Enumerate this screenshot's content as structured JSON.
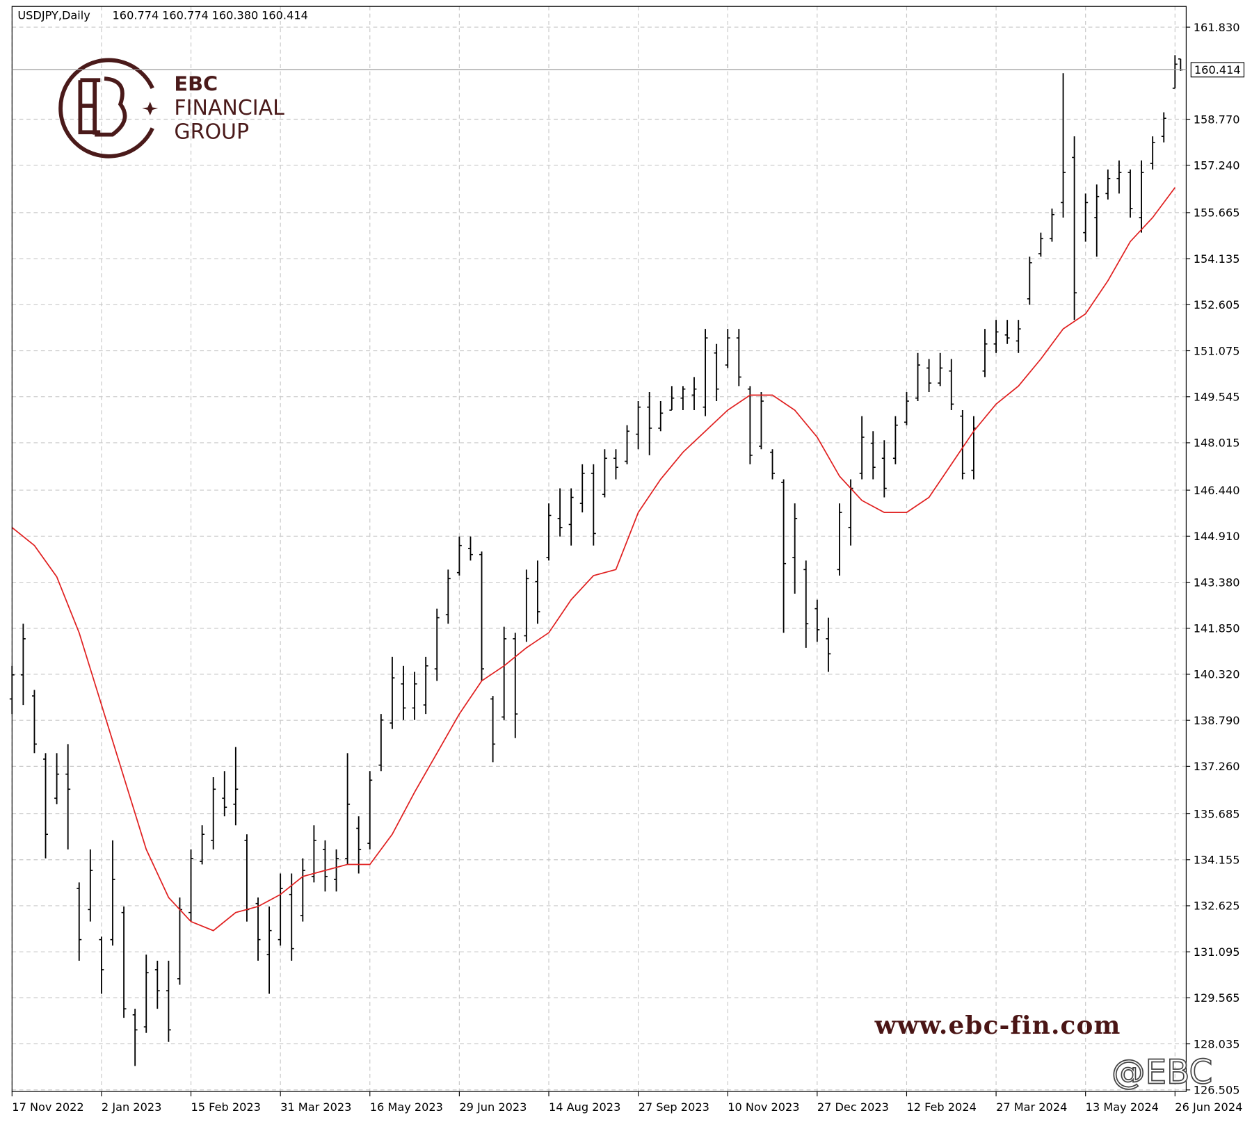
{
  "chart_data": {
    "type": "ohlc",
    "title": "USDJPY,Daily",
    "x": [
      0,
      4,
      8,
      12,
      16,
      20,
      24,
      28,
      32,
      36,
      40,
      44,
      48,
      52,
      56,
      60,
      64,
      68,
      72,
      76,
      80,
      84,
      88,
      92,
      96,
      100,
      104,
      108,
      112,
      116,
      120,
      124,
      128,
      132,
      136,
      140,
      144,
      148,
      152,
      156,
      160,
      164,
      168,
      172,
      176,
      180,
      184,
      188,
      192,
      196,
      200,
      204,
      208,
      212,
      216,
      220,
      224,
      228,
      232,
      236,
      240,
      244,
      248,
      252,
      256,
      260,
      264,
      268,
      272,
      276,
      280,
      284,
      288,
      292,
      296,
      300,
      304,
      308,
      312,
      316,
      320,
      324,
      328,
      332,
      336,
      340,
      344,
      348,
      352,
      356,
      360,
      364,
      368,
      372,
      376,
      380,
      384,
      388,
      392,
      396,
      400,
      404,
      408,
      412,
      416,
      418
    ],
    "ohlc": [
      [
        139.5,
        140.6,
        139.0,
        140.3
      ],
      [
        140.3,
        142.0,
        139.3,
        141.5
      ],
      [
        139.6,
        139.8,
        137.7,
        138.0
      ],
      [
        137.5,
        137.7,
        134.2,
        135.0
      ],
      [
        136.2,
        137.7,
        136.0,
        137.0
      ],
      [
        137.0,
        138.0,
        134.5,
        136.5
      ],
      [
        133.2,
        133.4,
        130.8,
        131.5
      ],
      [
        132.5,
        134.5,
        132.1,
        133.8
      ],
      [
        131.5,
        131.6,
        129.7,
        130.5
      ],
      [
        131.5,
        134.8,
        131.3,
        133.5
      ],
      [
        132.4,
        132.6,
        128.9,
        129.2
      ],
      [
        129.0,
        129.2,
        127.3,
        128.5
      ],
      [
        128.6,
        131.0,
        128.4,
        130.4
      ],
      [
        130.5,
        130.8,
        129.2,
        129.8
      ],
      [
        129.8,
        130.8,
        128.1,
        128.5
      ],
      [
        130.2,
        132.9,
        130.0,
        132.5
      ],
      [
        132.4,
        134.5,
        132.1,
        134.2
      ],
      [
        134.1,
        135.3,
        134.0,
        135.0
      ],
      [
        134.8,
        136.9,
        134.5,
        136.5
      ],
      [
        136.2,
        137.1,
        135.6,
        135.9
      ],
      [
        136.0,
        137.9,
        135.3,
        136.5
      ],
      [
        134.8,
        135.0,
        132.1,
        132.5
      ],
      [
        132.7,
        132.9,
        130.8,
        131.5
      ],
      [
        131.0,
        132.6,
        129.7,
        131.8
      ],
      [
        131.5,
        133.7,
        131.3,
        133.2
      ],
      [
        133.0,
        133.7,
        130.8,
        131.2
      ],
      [
        132.3,
        134.2,
        132.1,
        133.8
      ],
      [
        133.6,
        135.3,
        133.4,
        134.8
      ],
      [
        134.5,
        134.8,
        133.1,
        133.6
      ],
      [
        133.5,
        134.5,
        133.1,
        134.2
      ],
      [
        134.2,
        137.7,
        134.0,
        136.0
      ],
      [
        135.2,
        135.6,
        133.7,
        134.5
      ],
      [
        134.7,
        137.1,
        134.5,
        136.8
      ],
      [
        137.3,
        139.0,
        137.1,
        138.8
      ],
      [
        138.7,
        140.9,
        138.5,
        140.2
      ],
      [
        140.0,
        140.6,
        138.8,
        139.2
      ],
      [
        139.2,
        140.4,
        138.8,
        140.0
      ],
      [
        139.3,
        140.9,
        139.0,
        140.6
      ],
      [
        140.5,
        142.5,
        140.1,
        142.2
      ],
      [
        142.3,
        143.8,
        142.0,
        143.5
      ],
      [
        143.7,
        144.9,
        143.6,
        144.6
      ],
      [
        144.5,
        144.9,
        144.1,
        144.3
      ],
      [
        144.3,
        144.4,
        140.1,
        140.5
      ],
      [
        139.5,
        139.6,
        137.4,
        138.0
      ],
      [
        138.9,
        141.9,
        138.8,
        141.5
      ],
      [
        141.5,
        141.7,
        138.2,
        139.0
      ],
      [
        141.6,
        143.8,
        141.4,
        143.5
      ],
      [
        143.4,
        144.1,
        142.0,
        142.4
      ],
      [
        144.2,
        146.0,
        144.1,
        145.6
      ],
      [
        145.5,
        146.5,
        144.9,
        145.2
      ],
      [
        145.3,
        146.5,
        144.6,
        146.2
      ],
      [
        146.0,
        147.3,
        145.7,
        147.0
      ],
      [
        147.0,
        147.3,
        144.6,
        145.0
      ],
      [
        146.3,
        147.8,
        146.2,
        147.5
      ],
      [
        147.5,
        147.8,
        146.8,
        147.2
      ],
      [
        147.4,
        148.6,
        147.3,
        148.4
      ],
      [
        148.3,
        149.4,
        147.8,
        149.2
      ],
      [
        149.2,
        149.7,
        147.6,
        148.5
      ],
      [
        148.5,
        149.4,
        148.4,
        149.0
      ],
      [
        149.1,
        149.9,
        149.1,
        149.5
      ],
      [
        149.5,
        149.9,
        149.1,
        149.8
      ],
      [
        149.6,
        150.2,
        149.1,
        149.8
      ],
      [
        149.2,
        151.8,
        148.9,
        151.5
      ],
      [
        151.0,
        151.3,
        149.4,
        149.8
      ],
      [
        150.6,
        151.8,
        150.5,
        151.5
      ],
      [
        151.5,
        151.8,
        149.9,
        150.2
      ],
      [
        149.8,
        149.9,
        147.3,
        147.6
      ],
      [
        147.9,
        149.7,
        147.8,
        149.4
      ],
      [
        147.7,
        147.8,
        146.8,
        147.0
      ],
      [
        146.7,
        146.8,
        141.7,
        144.0
      ],
      [
        144.2,
        146.0,
        143.0,
        145.5
      ],
      [
        143.8,
        144.1,
        141.2,
        142.0
      ],
      [
        142.5,
        142.8,
        141.4,
        141.8
      ],
      [
        141.5,
        142.2,
        140.4,
        141.0
      ],
      [
        143.8,
        146.0,
        143.6,
        145.7
      ],
      [
        145.2,
        146.8,
        144.6,
        146.5
      ],
      [
        147.0,
        148.9,
        146.8,
        148.2
      ],
      [
        148.0,
        148.4,
        146.8,
        147.2
      ],
      [
        147.5,
        148.1,
        146.2,
        146.5
      ],
      [
        147.5,
        148.9,
        147.3,
        148.6
      ],
      [
        148.7,
        149.7,
        148.6,
        149.4
      ],
      [
        149.5,
        151.0,
        149.4,
        150.6
      ],
      [
        150.5,
        150.8,
        149.7,
        150.0
      ],
      [
        150.0,
        151.0,
        149.9,
        150.5
      ],
      [
        150.4,
        150.8,
        149.1,
        149.3
      ],
      [
        148.9,
        149.1,
        146.8,
        147.0
      ],
      [
        147.1,
        148.9,
        146.8,
        148.5
      ],
      [
        150.4,
        151.8,
        150.2,
        151.3
      ],
      [
        151.3,
        152.1,
        151.0,
        151.7
      ],
      [
        151.6,
        152.1,
        151.3,
        151.5
      ],
      [
        151.4,
        152.1,
        151.0,
        151.8
      ],
      [
        152.8,
        154.2,
        152.6,
        154.0
      ],
      [
        154.3,
        155.0,
        154.2,
        154.8
      ],
      [
        154.8,
        155.8,
        154.7,
        155.6
      ],
      [
        156.0,
        160.3,
        155.5,
        157.0
      ],
      [
        157.5,
        158.2,
        152.1,
        153.0
      ],
      [
        155.0,
        156.3,
        154.7,
        156.0
      ],
      [
        155.5,
        156.6,
        154.2,
        156.2
      ],
      [
        156.3,
        157.1,
        156.1,
        156.8
      ],
      [
        156.8,
        157.4,
        156.3,
        157.0
      ],
      [
        157.0,
        157.1,
        155.5,
        155.8
      ],
      [
        155.5,
        157.4,
        155.0,
        157.0
      ],
      [
        157.3,
        158.2,
        157.1,
        158.0
      ],
      [
        158.2,
        159.0,
        158.0,
        158.8
      ],
      [
        159.8,
        160.9,
        159.8,
        160.6
      ],
      [
        160.774,
        160.774,
        160.38,
        160.414
      ]
    ],
    "bar_color": "#000000",
    "ma": {
      "color": "#e02020",
      "x": [
        0,
        8,
        16,
        24,
        32,
        40,
        48,
        56,
        64,
        72,
        80,
        88,
        96,
        104,
        112,
        120,
        128,
        136,
        144,
        152,
        160,
        168,
        176,
        184,
        192,
        200,
        208,
        216,
        224,
        232,
        240,
        248,
        256,
        264,
        272,
        280,
        288,
        296,
        304,
        312,
        320,
        328,
        336,
        344,
        352,
        360,
        368,
        376,
        384,
        392,
        400,
        408,
        416
      ],
      "values": [
        145.2,
        144.6,
        143.56,
        141.7,
        139.3,
        136.9,
        134.5,
        132.9,
        132.1,
        131.8,
        132.4,
        132.6,
        133.0,
        133.6,
        133.8,
        134.0,
        134.0,
        135.0,
        136.4,
        137.7,
        139.0,
        140.1,
        140.6,
        141.2,
        141.7,
        142.8,
        143.6,
        143.8,
        145.7,
        146.8,
        147.7,
        148.4,
        149.1,
        149.6,
        149.6,
        149.1,
        148.2,
        146.9,
        146.1,
        145.7,
        145.7,
        146.2,
        147.3,
        148.4,
        149.3,
        149.9,
        150.8,
        151.8,
        152.3,
        153.4,
        154.7,
        155.5,
        156.5
      ]
    },
    "xlim": [
      0,
      420
    ],
    "xticks": [
      {
        "value": 0,
        "label": "17 Nov 2022"
      },
      {
        "value": 32,
        "label": "2 Jan 2023"
      },
      {
        "value": 64,
        "label": "15 Feb 2023"
      },
      {
        "value": 96,
        "label": "31 Mar 2023"
      },
      {
        "value": 128,
        "label": "16 May 2023"
      },
      {
        "value": 160,
        "label": "29 Jun 2023"
      },
      {
        "value": 192,
        "label": "14 Aug 2023"
      },
      {
        "value": 224,
        "label": "27 Sep 2023"
      },
      {
        "value": 256,
        "label": "10 Nov 2023"
      },
      {
        "value": 288,
        "label": "27 Dec 2023"
      },
      {
        "value": 320,
        "label": "12 Feb 2024"
      },
      {
        "value": 352,
        "label": "27 Mar 2024"
      },
      {
        "value": 384,
        "label": "13 May 2024"
      },
      {
        "value": 416,
        "label": "26 Jun 2024"
      }
    ],
    "ylim": [
      126.45,
      162.52
    ],
    "yticks": [
      {
        "value": 161.83,
        "label": "161.830"
      },
      {
        "value": 158.77,
        "label": "158.770"
      },
      {
        "value": 157.24,
        "label": "157.240"
      },
      {
        "value": 155.665,
        "label": "155.665"
      },
      {
        "value": 154.135,
        "label": "154.135"
      },
      {
        "value": 152.605,
        "label": "152.605"
      },
      {
        "value": 151.075,
        "label": "151.075"
      },
      {
        "value": 149.545,
        "label": "149.545"
      },
      {
        "value": 148.015,
        "label": "148.015"
      },
      {
        "value": 146.44,
        "label": "146.440"
      },
      {
        "value": 144.91,
        "label": "144.910"
      },
      {
        "value": 143.38,
        "label": "143.380"
      },
      {
        "value": 141.85,
        "label": "141.850"
      },
      {
        "value": 140.32,
        "label": "140.320"
      },
      {
        "value": 138.79,
        "label": "138.790"
      },
      {
        "value": 137.26,
        "label": "137.260"
      },
      {
        "value": 135.685,
        "label": "135.685"
      },
      {
        "value": 134.155,
        "label": "134.155"
      },
      {
        "value": 132.625,
        "label": "132.625"
      },
      {
        "value": 131.095,
        "label": "131.095"
      },
      {
        "value": 129.565,
        "label": "129.565"
      },
      {
        "value": 128.035,
        "label": "128.035"
      },
      {
        "value": 126.505,
        "label": "126.505"
      }
    ],
    "last_price_label": "160.414",
    "header_values": [
      "160.774",
      "160.774",
      "160.380",
      "160.414"
    ],
    "grid": true,
    "logo": {
      "line1": "EBC",
      "line2": "FINANCIAL",
      "line3": "GROUP"
    },
    "website": "www.ebc-fin.com",
    "watermark": "@EBC"
  }
}
